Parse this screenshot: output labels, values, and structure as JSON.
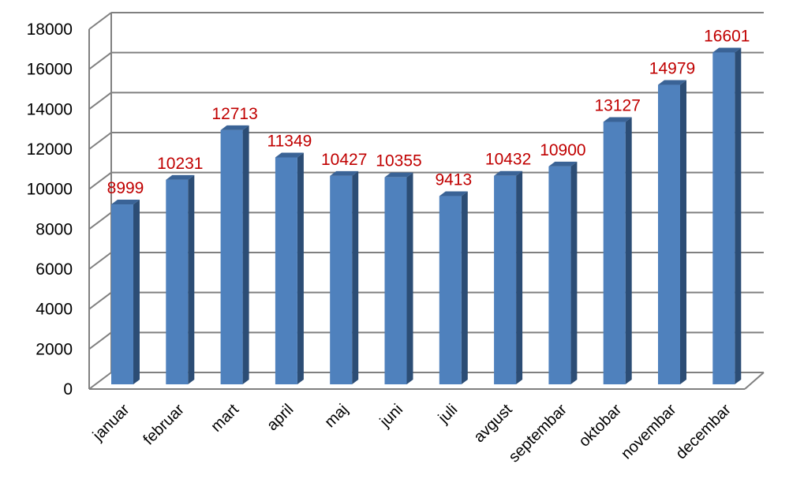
{
  "chart_data": {
    "type": "bar",
    "categories": [
      "januar",
      "februar",
      "mart",
      "april",
      "maj",
      "juni",
      "juli",
      "avgust",
      "septembar",
      "oktobar",
      "novembar",
      "decembar"
    ],
    "values": [
      8999,
      10231,
      12713,
      11349,
      10427,
      10355,
      9413,
      10432,
      10900,
      13127,
      14979,
      16601
    ],
    "data_labels": [
      "8999",
      "10231",
      "12713",
      "11349",
      "10427",
      "10355",
      "9413",
      "10432",
      "10900",
      "13127",
      "14979",
      "16601"
    ],
    "y_ticks": [
      0,
      2000,
      4000,
      6000,
      8000,
      10000,
      12000,
      14000,
      16000,
      18000
    ],
    "y_tick_labels": [
      "0",
      "2000",
      "4000",
      "6000",
      "8000",
      "10000",
      "12000",
      "14000",
      "16000",
      "18000"
    ],
    "ylim": [
      0,
      18000
    ],
    "grid": true,
    "legend": "none",
    "style": "3d-column",
    "colors": {
      "bar_front": "#4f81bd",
      "bar_side": "#2c4d75",
      "bar_top": "#3a6396",
      "data_label": "#c00000",
      "grid": "#808080",
      "axis_text": "#000000"
    }
  }
}
